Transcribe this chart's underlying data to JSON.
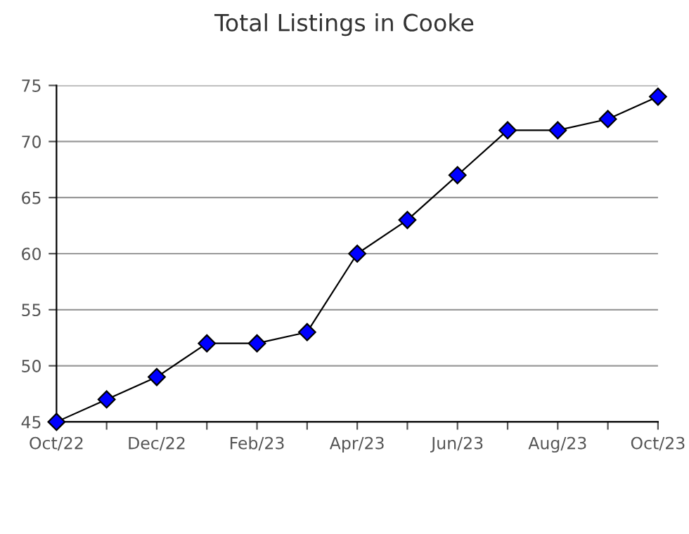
{
  "chart_data": {
    "type": "line",
    "title": "Total Listings in Cooke",
    "categories": [
      "Oct/22",
      null,
      "Dec/22",
      null,
      "Feb/23",
      null,
      "Apr/23",
      null,
      "Jun/23",
      null,
      "Aug/23",
      null,
      "Oct/23"
    ],
    "series": [
      {
        "color": "#0000ff",
        "values": [
          45,
          47,
          49,
          52,
          52,
          53,
          60,
          63,
          67,
          71,
          71,
          72,
          74
        ]
      }
    ],
    "ylim": [
      45,
      75
    ],
    "yticks": [
      45,
      50,
      55,
      60,
      65,
      70,
      75
    ],
    "grid": "y",
    "marker": "diamond",
    "line_style": "solid"
  }
}
